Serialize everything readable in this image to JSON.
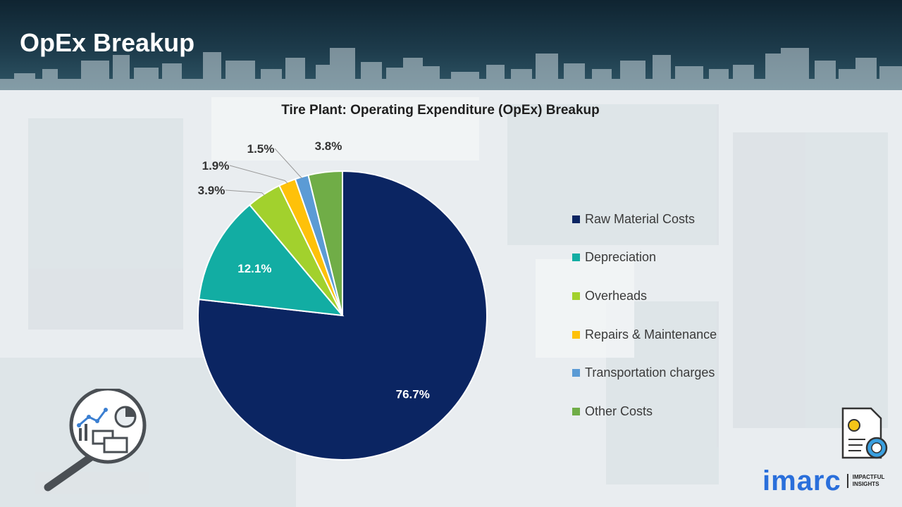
{
  "header": {
    "title": "OpEx Breakup"
  },
  "chart_data": {
    "type": "pie",
    "title": "Tire Plant: Operating Expenditure (OpEx) Breakup",
    "categories": [
      "Raw Material Costs",
      "Depreciation",
      "Overheads",
      "Repairs & Maintenance",
      "Transportation charges",
      "Other Costs"
    ],
    "values": [
      76.7,
      12.1,
      3.9,
      1.9,
      1.5,
      3.8
    ],
    "labels": [
      "76.7%",
      "12.1%",
      "3.9%",
      "1.9%",
      "1.5%",
      "3.8%"
    ],
    "colors": [
      "#0b2562",
      "#12ada3",
      "#a2d12d",
      "#fec10a",
      "#5b9bd5",
      "#70ad47"
    ],
    "legend_position": "right",
    "start_angle": "12 o'clock",
    "direction": "clockwise"
  },
  "branding": {
    "logo_text": "imarc",
    "tagline_line1": "IMPACTFUL",
    "tagline_line2": "INSIGHTS"
  },
  "icons": [
    "analytics-magnifier-icon",
    "document-currency-icon"
  ]
}
